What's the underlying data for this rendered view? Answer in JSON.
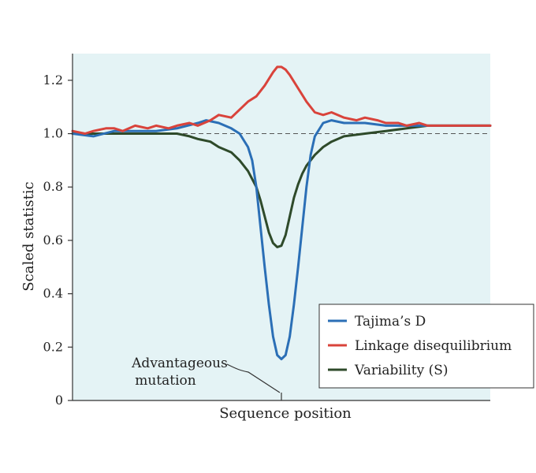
{
  "chart_data": {
    "type": "line",
    "title": "",
    "xlabel": "Sequence position",
    "ylabel": "Scaled statistic",
    "xlim": [
      0,
      100
    ],
    "ylim": [
      0,
      1.3
    ],
    "yticks": [
      0,
      0.2,
      0.4,
      0.6,
      0.8,
      1.0,
      1.2
    ],
    "ytick_labels": [
      "0",
      "0.2",
      "0.4",
      "0.6",
      "0.8",
      "1.0",
      "1.2"
    ],
    "grid": false,
    "legend_position": "bottom-right",
    "reference_line": {
      "y": 1.0,
      "style": "dashed"
    },
    "annotation": {
      "lines": [
        "Advantageous",
        "mutation"
      ],
      "x": 50
    },
    "series": [
      {
        "name": "Tajima's D",
        "color": "#2b6fb6",
        "x": [
          0,
          5,
          10,
          15,
          20,
          25,
          30,
          32,
          35,
          38,
          40,
          42,
          43,
          44,
          45,
          46,
          47,
          48,
          49,
          50,
          51,
          52,
          53,
          54,
          55,
          56,
          57,
          58,
          60,
          62,
          65,
          70,
          75,
          80,
          85,
          90,
          95,
          100
        ],
        "y": [
          1.0,
          0.99,
          1.01,
          1.01,
          1.01,
          1.02,
          1.04,
          1.05,
          1.04,
          1.02,
          1.0,
          0.95,
          0.9,
          0.8,
          0.65,
          0.5,
          0.36,
          0.24,
          0.17,
          0.155,
          0.17,
          0.24,
          0.36,
          0.5,
          0.65,
          0.8,
          0.92,
          0.99,
          1.04,
          1.05,
          1.04,
          1.04,
          1.03,
          1.03,
          1.03,
          1.03,
          1.03,
          1.03
        ]
      },
      {
        "name": "Linkage disequilibrium",
        "color": "#d9433b",
        "x": [
          0,
          3,
          5,
          8,
          10,
          12,
          15,
          18,
          20,
          23,
          25,
          28,
          30,
          33,
          35,
          38,
          40,
          42,
          44,
          46,
          48,
          49,
          50,
          51,
          52,
          54,
          56,
          58,
          60,
          62,
          65,
          68,
          70,
          73,
          75,
          78,
          80,
          83,
          85,
          88,
          90,
          93,
          95,
          100
        ],
        "y": [
          1.01,
          1.0,
          1.01,
          1.02,
          1.02,
          1.01,
          1.03,
          1.02,
          1.03,
          1.02,
          1.03,
          1.04,
          1.03,
          1.05,
          1.07,
          1.06,
          1.09,
          1.12,
          1.14,
          1.18,
          1.23,
          1.25,
          1.25,
          1.24,
          1.22,
          1.17,
          1.12,
          1.08,
          1.07,
          1.08,
          1.06,
          1.05,
          1.06,
          1.05,
          1.04,
          1.04,
          1.03,
          1.04,
          1.03,
          1.03,
          1.03,
          1.03,
          1.03,
          1.03
        ]
      },
      {
        "name": "Variability (S)",
        "color": "#2e4a2a",
        "x": [
          0,
          5,
          10,
          15,
          20,
          25,
          28,
          30,
          33,
          35,
          38,
          40,
          42,
          44,
          45,
          46,
          47,
          48,
          49,
          50,
          51,
          52,
          53,
          54,
          55,
          56,
          58,
          60,
          62,
          65,
          70,
          75,
          80,
          85,
          90,
          95,
          100
        ],
        "y": [
          1.0,
          1.0,
          1.0,
          1.0,
          1.0,
          1.0,
          0.99,
          0.98,
          0.97,
          0.95,
          0.93,
          0.9,
          0.86,
          0.8,
          0.75,
          0.69,
          0.63,
          0.59,
          0.575,
          0.58,
          0.62,
          0.69,
          0.76,
          0.81,
          0.85,
          0.88,
          0.92,
          0.95,
          0.97,
          0.99,
          1.0,
          1.01,
          1.02,
          1.03,
          1.03,
          1.03,
          1.03
        ]
      }
    ]
  },
  "legend": {
    "items": [
      {
        "label": "Tajima’s D",
        "color": "#2b6fb6"
      },
      {
        "label": "Linkage disequilibrium",
        "color": "#d9433b"
      },
      {
        "label": "Variability (S)",
        "color": "#2e4a2a"
      }
    ]
  },
  "colors": {
    "plot_background": "#e4f3f5",
    "axis": "#333333",
    "reference_line": "#555555"
  }
}
